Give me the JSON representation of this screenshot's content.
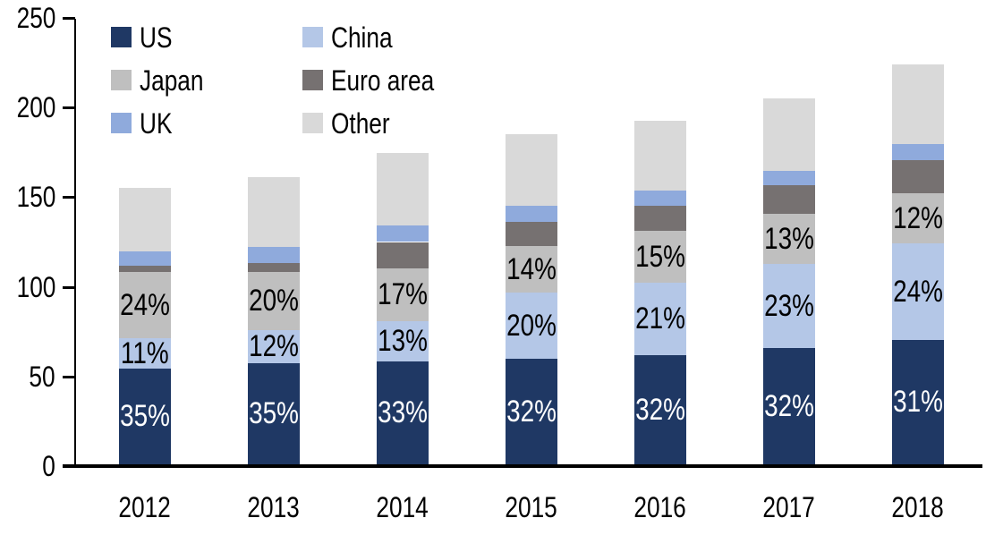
{
  "chart_data": {
    "type": "bar",
    "stacked": true,
    "title": "",
    "categories": [
      "2012",
      "2013",
      "2014",
      "2015",
      "2016",
      "2017",
      "2018"
    ],
    "series": [
      {
        "name": "US",
        "color": "#1F3864",
        "values": [
          53.5,
          56.5,
          57.5,
          59,
          61,
          65,
          69.5
        ],
        "labels": [
          "35%",
          "35%",
          "33%",
          "32%",
          "32%",
          "32%",
          "31%"
        ],
        "label_color": "#FFFFFF"
      },
      {
        "name": "China",
        "color": "#B4C7E7",
        "values": [
          17,
          18.5,
          22.5,
          37,
          40.5,
          47,
          54
        ],
        "labels": [
          "11%",
          "12%",
          "13%",
          "20%",
          "21%",
          "23%",
          "24%"
        ],
        "label_color": "#000000"
      },
      {
        "name": "Japan",
        "color": "#BFBFBF",
        "values": [
          37,
          32.5,
          29.5,
          26,
          28.5,
          27.5,
          27.5
        ],
        "labels": [
          "24%",
          "20%",
          "17%",
          "14%",
          "15%",
          "13%",
          "12%"
        ],
        "label_color": "#000000"
      },
      {
        "name": "Euro area",
        "color": "#767171",
        "values": [
          3.5,
          5,
          14.5,
          13,
          14,
          16,
          18.5
        ]
      },
      {
        "name": "UK",
        "color": "#8FAADC",
        "values": [
          8,
          9,
          9,
          9,
          8.5,
          8,
          9
        ]
      },
      {
        "name": "Other",
        "color": "#D9D9D9",
        "values": [
          35,
          38.5,
          40.5,
          40,
          39,
          40.5,
          44.5
        ]
      }
    ],
    "totals": [
      154,
      160,
      173.5,
      184,
      191.5,
      204,
      223
    ],
    "ylim": [
      0,
      250
    ],
    "yticks": [
      "0",
      "50",
      "100",
      "150",
      "200",
      "250"
    ],
    "legend_position": "top-left",
    "legend_columns": 2,
    "grid": false,
    "axis_color": "#000000",
    "background_color": "#FFFFFF"
  }
}
